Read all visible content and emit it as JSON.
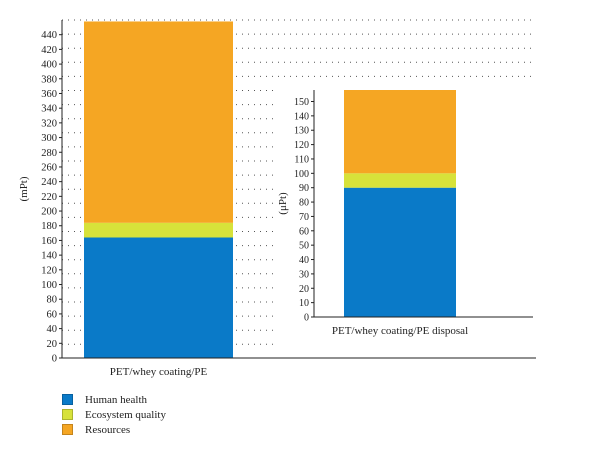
{
  "chart_data": [
    {
      "type": "bar",
      "stacked": true,
      "categories": [
        "PET/whey coating/PE"
      ],
      "ylabel": "(mPt)",
      "ylim": [
        0,
        460
      ],
      "yticks": [
        0,
        20,
        40,
        60,
        80,
        100,
        120,
        140,
        160,
        180,
        200,
        220,
        240,
        260,
        280,
        300,
        320,
        340,
        360,
        380,
        400,
        420,
        440
      ],
      "grid": "dotted",
      "series": [
        {
          "name": "Human health",
          "values": [
            164
          ]
        },
        {
          "name": "Ecosystem quality",
          "values": [
            20
          ]
        },
        {
          "name": "Resources",
          "values": [
            274
          ]
        }
      ]
    },
    {
      "type": "bar",
      "stacked": true,
      "inset": true,
      "categories": [
        "PET/whey coating/PE disposal"
      ],
      "ylabel": "(μPt)",
      "ylim": [
        0,
        158
      ],
      "yticks": [
        0,
        10,
        20,
        30,
        40,
        50,
        60,
        70,
        80,
        90,
        100,
        110,
        120,
        130,
        140,
        150
      ],
      "series": [
        {
          "name": "Human health",
          "values": [
            90
          ]
        },
        {
          "name": "Ecosystem quality",
          "values": [
            10
          ]
        },
        {
          "name": "Resources",
          "values": [
            58
          ]
        }
      ]
    }
  ],
  "legend": {
    "placement": "bottom-left",
    "items": [
      {
        "label": "Human health",
        "color": "#0a7ac8"
      },
      {
        "label": "Ecosystem quality",
        "color": "#d7e23a"
      },
      {
        "label": "Resources",
        "color": "#f5a623"
      }
    ]
  },
  "colors": {
    "Human health": "#0a7ac8",
    "Ecosystem quality": "#d7e23a",
    "Resources": "#f5a623"
  }
}
